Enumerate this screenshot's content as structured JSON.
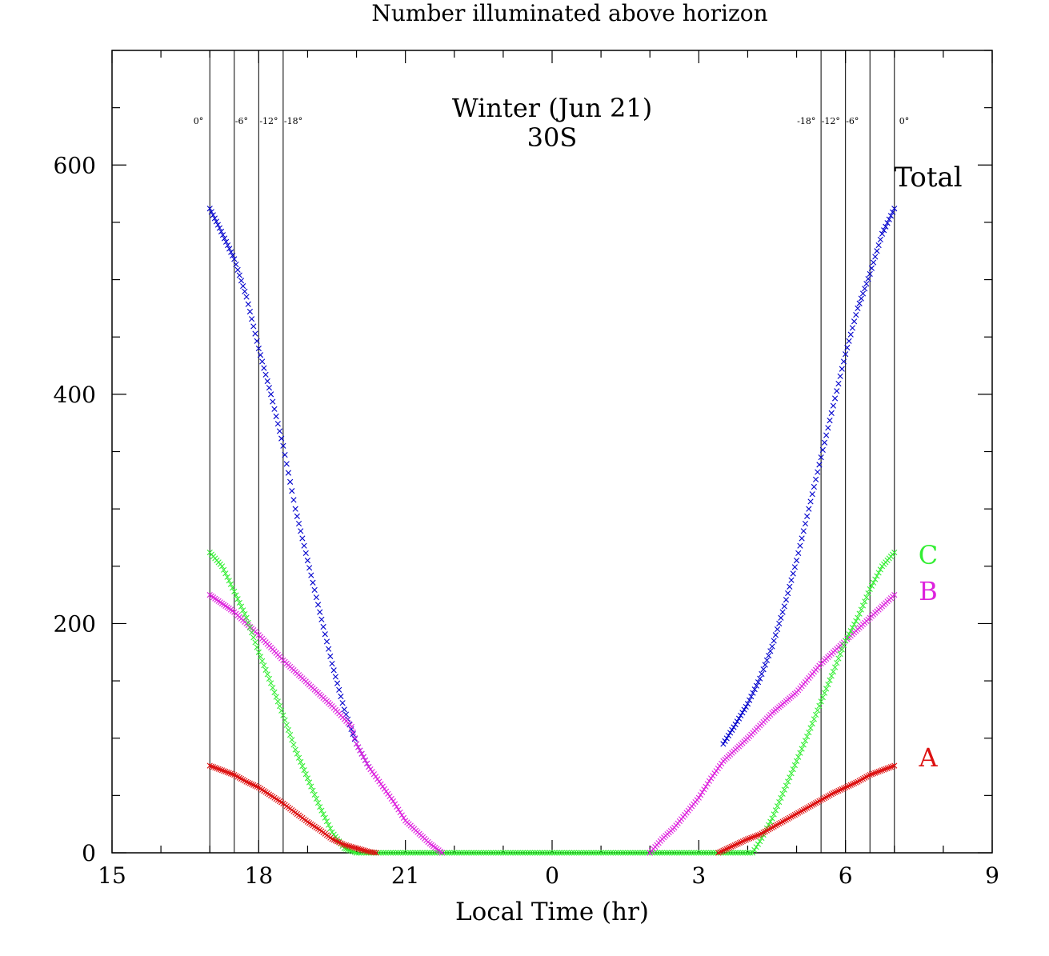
{
  "chart_data": {
    "type": "scatter",
    "title": "Number illuminated above horizon",
    "annotation_title": "Winter (Jun 21)",
    "annotation_sub": "30S",
    "xlabel": "Local Time (hr)",
    "ylabel": "",
    "x_ticks": [
      {
        "x": 15,
        "label": "15"
      },
      {
        "x": 18,
        "label": "18"
      },
      {
        "x": 21,
        "label": "21"
      },
      {
        "x": 24,
        "label": "0"
      },
      {
        "x": 27,
        "label": "3"
      },
      {
        "x": 30,
        "label": "6"
      },
      {
        "x": 33,
        "label": "9"
      }
    ],
    "xlim": [
      15,
      33
    ],
    "ylim": [
      0,
      700
    ],
    "y_ticks": [
      0,
      200,
      400,
      600
    ],
    "grid": false,
    "twilight_lines": {
      "evening": [
        {
          "x": 17.0,
          "label": "0°"
        },
        {
          "x": 17.5,
          "label": "-6°"
        },
        {
          "x": 18.0,
          "label": "-12°"
        },
        {
          "x": 18.5,
          "label": "-18°"
        }
      ],
      "morning": [
        {
          "x": 29.5,
          "label": "-18°"
        },
        {
          "x": 30.0,
          "label": "-12°"
        },
        {
          "x": 30.5,
          "label": "-6°"
        },
        {
          "x": 31.0,
          "label": "0°"
        }
      ]
    },
    "series": [
      {
        "name": "Total",
        "color": "#0000cc",
        "evening": [
          [
            17.0,
            562
          ],
          [
            17.2,
            545
          ],
          [
            17.5,
            518
          ],
          [
            17.75,
            485
          ],
          [
            18.0,
            440
          ],
          [
            18.25,
            400
          ],
          [
            18.5,
            355
          ],
          [
            18.75,
            300
          ],
          [
            19.0,
            255
          ],
          [
            19.25,
            210
          ],
          [
            19.5,
            165
          ],
          [
            19.75,
            125
          ],
          [
            20.0,
            95
          ],
          [
            20.25,
            75
          ]
        ],
        "morning": [
          [
            27.5,
            95
          ],
          [
            27.75,
            112
          ],
          [
            28.0,
            130
          ],
          [
            28.25,
            152
          ],
          [
            28.5,
            180
          ],
          [
            28.75,
            215
          ],
          [
            29.0,
            255
          ],
          [
            29.25,
            300
          ],
          [
            29.5,
            345
          ],
          [
            29.75,
            390
          ],
          [
            30.0,
            435
          ],
          [
            30.25,
            475
          ],
          [
            30.5,
            505
          ],
          [
            30.75,
            540
          ],
          [
            31.0,
            562
          ]
        ]
      },
      {
        "name": "B",
        "color": "#dd22dd",
        "evening": [
          [
            17.0,
            225
          ],
          [
            17.5,
            210
          ],
          [
            18.0,
            190
          ],
          [
            18.5,
            168
          ],
          [
            19.0,
            148
          ],
          [
            19.5,
            128
          ],
          [
            19.9,
            110
          ],
          [
            20.0,
            95
          ],
          [
            20.25,
            75
          ],
          [
            20.5,
            60
          ],
          [
            20.75,
            45
          ],
          [
            21.0,
            28
          ],
          [
            21.25,
            18
          ],
          [
            21.5,
            8
          ],
          [
            21.75,
            0
          ]
        ],
        "morning": [
          [
            26.0,
            0
          ],
          [
            26.25,
            12
          ],
          [
            26.5,
            22
          ],
          [
            26.75,
            35
          ],
          [
            27.0,
            48
          ],
          [
            27.25,
            65
          ],
          [
            27.5,
            80
          ],
          [
            27.75,
            90
          ],
          [
            28.0,
            100
          ],
          [
            28.5,
            122
          ],
          [
            29.0,
            140
          ],
          [
            29.5,
            165
          ],
          [
            30.0,
            185
          ],
          [
            30.5,
            205
          ],
          [
            31.0,
            225
          ]
        ]
      },
      {
        "name": "C",
        "color": "#33ee33",
        "evening": [
          [
            17.0,
            262
          ],
          [
            17.25,
            250
          ],
          [
            17.5,
            228
          ],
          [
            17.75,
            205
          ],
          [
            18.0,
            175
          ],
          [
            18.25,
            148
          ],
          [
            18.5,
            120
          ],
          [
            18.75,
            90
          ],
          [
            19.0,
            65
          ],
          [
            19.25,
            40
          ],
          [
            19.5,
            18
          ],
          [
            19.75,
            4
          ],
          [
            20.0,
            0
          ]
        ],
        "morning": [
          [
            28.1,
            0
          ],
          [
            28.25,
            10
          ],
          [
            28.5,
            30
          ],
          [
            28.75,
            55
          ],
          [
            29.0,
            80
          ],
          [
            29.25,
            105
          ],
          [
            29.5,
            132
          ],
          [
            29.75,
            158
          ],
          [
            30.0,
            185
          ],
          [
            30.25,
            205
          ],
          [
            30.5,
            230
          ],
          [
            30.75,
            250
          ],
          [
            31.0,
            262
          ]
        ]
      },
      {
        "name": "A",
        "color": "#dd1111",
        "evening": [
          [
            17.0,
            76
          ],
          [
            17.25,
            72
          ],
          [
            17.5,
            68
          ],
          [
            17.75,
            62
          ],
          [
            18.0,
            57
          ],
          [
            18.25,
            50
          ],
          [
            18.5,
            43
          ],
          [
            18.75,
            35
          ],
          [
            19.0,
            27
          ],
          [
            19.25,
            20
          ],
          [
            19.5,
            12
          ],
          [
            19.75,
            7
          ],
          [
            20.0,
            4
          ],
          [
            20.25,
            1
          ],
          [
            20.4,
            0
          ]
        ],
        "morning": [
          [
            27.4,
            0
          ],
          [
            27.6,
            4
          ],
          [
            27.8,
            8
          ],
          [
            28.0,
            12
          ],
          [
            28.25,
            16
          ],
          [
            28.5,
            22
          ],
          [
            28.75,
            28
          ],
          [
            29.0,
            34
          ],
          [
            29.25,
            40
          ],
          [
            29.5,
            46
          ],
          [
            29.75,
            52
          ],
          [
            30.0,
            57
          ],
          [
            30.25,
            62
          ],
          [
            30.5,
            68
          ],
          [
            30.75,
            72
          ],
          [
            31.0,
            76
          ]
        ]
      }
    ],
    "zero_line_color": "#33ee33"
  }
}
